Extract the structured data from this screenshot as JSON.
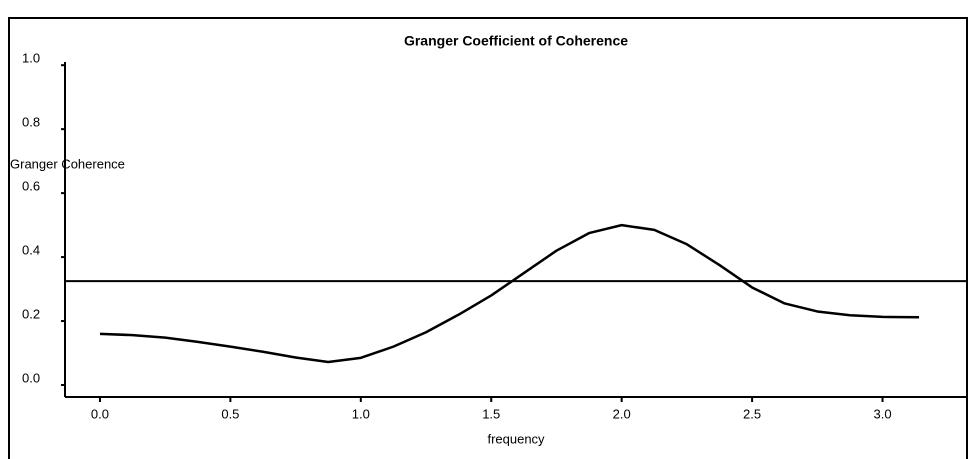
{
  "chart_data": {
    "type": "line",
    "title": "Granger Coefficient of Coherence",
    "x_label": "frequency",
    "y_label": "Granger  Coherence",
    "x": [
      0,
      0.125,
      0.25,
      0.375,
      0.5,
      0.625,
      0.75,
      0.875,
      1.0,
      1.125,
      1.25,
      1.375,
      1.5,
      1.625,
      1.75,
      1.875,
      2.0,
      2.125,
      2.25,
      2.375,
      2.5,
      2.625,
      2.75,
      2.875,
      3.0,
      3.14
    ],
    "series": [
      {
        "color": "#000000",
        "values": [
          0.16,
          0.156,
          0.148,
          0.135,
          0.12,
          0.104,
          0.086,
          0.072,
          0.085,
          0.12,
          0.165,
          0.22,
          0.28,
          0.35,
          0.42,
          0.475,
          0.5,
          0.485,
          0.44,
          0.375,
          0.305,
          0.255,
          0.23,
          0.218,
          0.213,
          0.212
        ]
      }
    ],
    "reference_line": 0.325,
    "xlim": [
      -0.134,
      3.32
    ],
    "ylim": [
      -0.0375,
      1.01
    ],
    "xticks": [
      {
        "value": 0,
        "label": "0.0"
      },
      0.5,
      {
        "value": 1,
        "label": "1.0"
      },
      1.5,
      {
        "value": 2,
        "label": "2.0"
      },
      2.5,
      {
        "value": 3,
        "label": "3.0"
      }
    ],
    "yticks": [
      {
        "value": 0,
        "label": "0.0"
      },
      0.2,
      0.4,
      0.6,
      0.8,
      {
        "value": 1,
        "label": "1.0"
      }
    ]
  }
}
